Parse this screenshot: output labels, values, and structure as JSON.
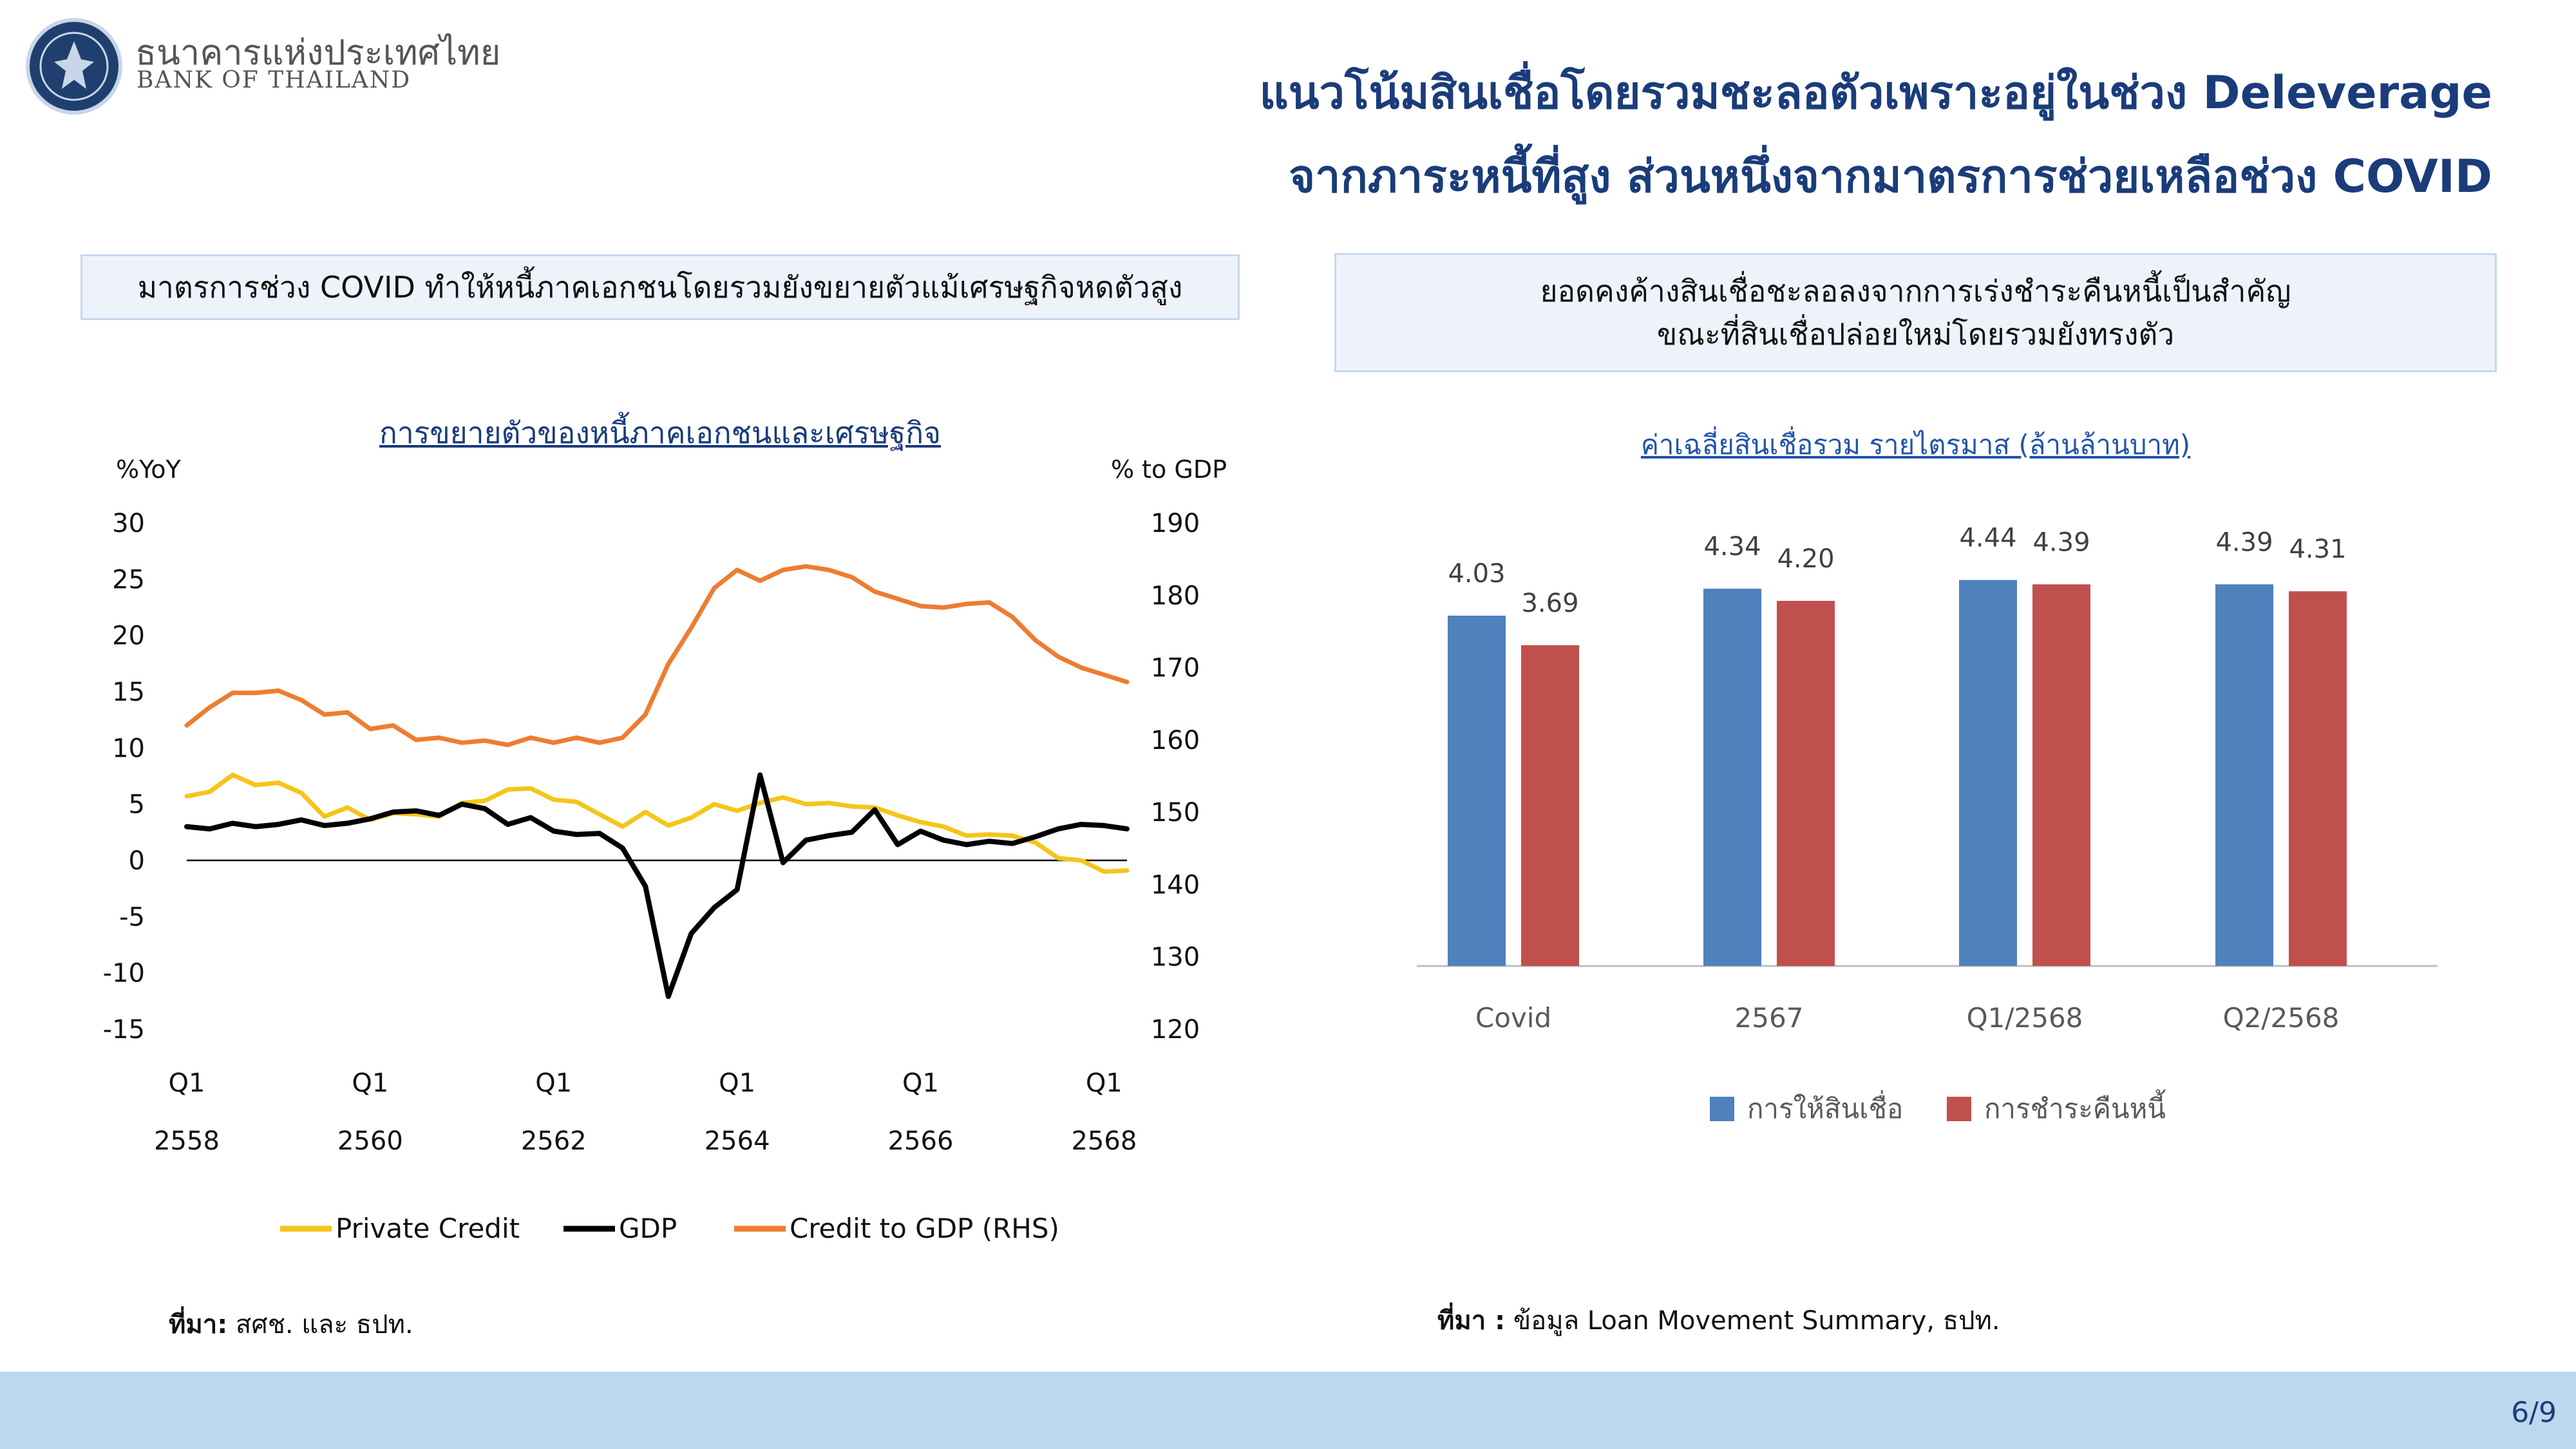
{
  "header": {
    "logo_th": "ธนาคารแห่งประเทศไทย",
    "logo_en": "BANK OF THAILAND",
    "title_line1": "แนวโน้มสินเชื่อโดยรวมชะลอตัวเพราะอยู่ในช่วง Deleverage",
    "title_line2": "จากภาระหนี้ที่สูง ส่วนหนึ่งจากมาตรการช่วยเหลือช่วง COVID"
  },
  "left_panel": {
    "box_text": "มาตรการช่วง COVID ทำให้หนี้ภาคเอกชนโดยรวมยังขยายตัวแม้เศรษฐกิจหดตัวสูง",
    "source_label": "ที่มา:",
    "source_text": " สศช. และ ธปท."
  },
  "right_panel": {
    "box_line1": "ยอดคงค้างสินเชื่อชะลอลงจากการเร่งชำระคืนหนี้เป็นสำคัญ",
    "box_line2": "ขณะที่สินเชื่อปล่อยใหม่โดยรวมยังทรงตัว",
    "source_label": "ที่มา :",
    "source_text": " ข้อมูล Loan Movement Summary, ธปท."
  },
  "footer": {
    "page": "6/9"
  },
  "chart_data": [
    {
      "type": "line",
      "title": "การขยายตัวของหนี้ภาคเอกชนและเศรษฐกิจ",
      "ylabel": "%YoY",
      "ylabel_right": "% to GDP",
      "ylim": [
        -15,
        30
      ],
      "yticks": [
        30,
        25,
        20,
        15,
        10,
        5,
        0,
        -5,
        -10,
        -15
      ],
      "ylim_right": [
        120,
        190
      ],
      "yticks_right": [
        190,
        180,
        170,
        160,
        150,
        140,
        130,
        120
      ],
      "xtick_labels": [
        {
          "q": "Q1",
          "year": "2558"
        },
        {
          "q": "Q1",
          "year": "2560"
        },
        {
          "q": "Q1",
          "year": "2562"
        },
        {
          "q": "Q1",
          "year": "2564"
        },
        {
          "q": "Q1",
          "year": "2566"
        },
        {
          "q": "Q1",
          "year": "2568"
        }
      ],
      "x": [
        "Q1/2558",
        "Q2/2558",
        "Q3/2558",
        "Q4/2558",
        "Q1/2559",
        "Q2/2559",
        "Q3/2559",
        "Q4/2559",
        "Q1/2560",
        "Q2/2560",
        "Q3/2560",
        "Q4/2560",
        "Q1/2561",
        "Q2/2561",
        "Q3/2561",
        "Q4/2561",
        "Q1/2562",
        "Q2/2562",
        "Q3/2562",
        "Q4/2562",
        "Q1/2563",
        "Q2/2563",
        "Q3/2563",
        "Q4/2563",
        "Q1/2564",
        "Q2/2564",
        "Q3/2564",
        "Q4/2564",
        "Q1/2565",
        "Q2/2565",
        "Q3/2565",
        "Q4/2565",
        "Q1/2566",
        "Q2/2566",
        "Q3/2566",
        "Q4/2566",
        "Q1/2567",
        "Q2/2567",
        "Q3/2567",
        "Q4/2567",
        "Q1/2568",
        "Q2/2568"
      ],
      "series": [
        {
          "name": "Private Credit",
          "axis": "left",
          "color": "#f5c518",
          "values": [
            5.7,
            6.1,
            7.6,
            6.7,
            6.9,
            6.0,
            3.9,
            4.7,
            3.6,
            4.2,
            4.1,
            3.9,
            5.1,
            5.3,
            6.3,
            6.4,
            5.4,
            5.2,
            4.1,
            3.0,
            4.3,
            3.1,
            3.8,
            5.0,
            4.4,
            5.1,
            5.6,
            5.0,
            5.1,
            4.8,
            4.7,
            4.0,
            3.4,
            3.0,
            2.2,
            2.3,
            2.2,
            1.6,
            0.2,
            0.0,
            -1.0,
            -0.9
          ]
        },
        {
          "name": "GDP",
          "axis": "left",
          "color": "#000000",
          "values": [
            3.0,
            2.8,
            3.3,
            3.0,
            3.2,
            3.6,
            3.1,
            3.3,
            3.7,
            4.3,
            4.4,
            4.0,
            5.0,
            4.6,
            3.2,
            3.8,
            2.6,
            2.3,
            2.4,
            1.1,
            -2.3,
            -12.1,
            -6.5,
            -4.2,
            -2.6,
            7.6,
            -0.2,
            1.8,
            2.2,
            2.5,
            4.5,
            1.4,
            2.6,
            1.8,
            1.4,
            1.7,
            1.5,
            2.1,
            2.8,
            3.2,
            3.1,
            2.8
          ]
        },
        {
          "name": "Credit to GDP (RHS)",
          "axis": "right",
          "color": "#ed7d31",
          "values": [
            162.0,
            164.5,
            166.5,
            166.5,
            166.8,
            165.5,
            163.5,
            163.8,
            161.5,
            162.0,
            160.0,
            160.3,
            159.6,
            159.9,
            159.3,
            160.3,
            159.6,
            160.3,
            159.6,
            160.3,
            163.5,
            170.5,
            175.5,
            181.0,
            183.5,
            182.0,
            183.5,
            184.0,
            183.5,
            182.5,
            180.5,
            179.5,
            178.5,
            178.3,
            178.8,
            179.0,
            177.0,
            173.8,
            171.5,
            170.0,
            169.0,
            168.0
          ]
        }
      ]
    },
    {
      "type": "bar",
      "title": "ค่าเฉลี่ยสินเชื่อรวม รายไตรมาส (ล้านล้านบาท)",
      "categories": [
        "Covid",
        "2567",
        "Q1/2568",
        "Q2/2568"
      ],
      "ylim": [
        0,
        5
      ],
      "series": [
        {
          "name": "การให้สินเชื่อ",
          "color": "#4f81bd",
          "values": [
            4.03,
            4.34,
            4.44,
            4.39
          ]
        },
        {
          "name": "การชำระคืนหนี้",
          "color": "#c0504d",
          "values": [
            3.69,
            4.2,
            4.39,
            4.31
          ]
        }
      ]
    }
  ]
}
